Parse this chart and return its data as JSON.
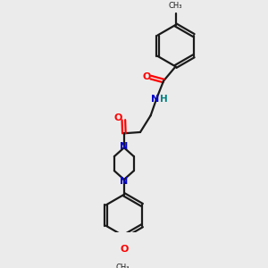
{
  "background_color": "#ebebeb",
  "bond_color": "#1a1a1a",
  "oxygen_color": "#ff0000",
  "nitrogen_color": "#0000cc",
  "nitrogen_h_color": "#008080",
  "figsize": [
    3.0,
    3.0
  ],
  "dpi": 100,
  "xlim": [
    0,
    10
  ],
  "ylim": [
    0,
    10
  ]
}
